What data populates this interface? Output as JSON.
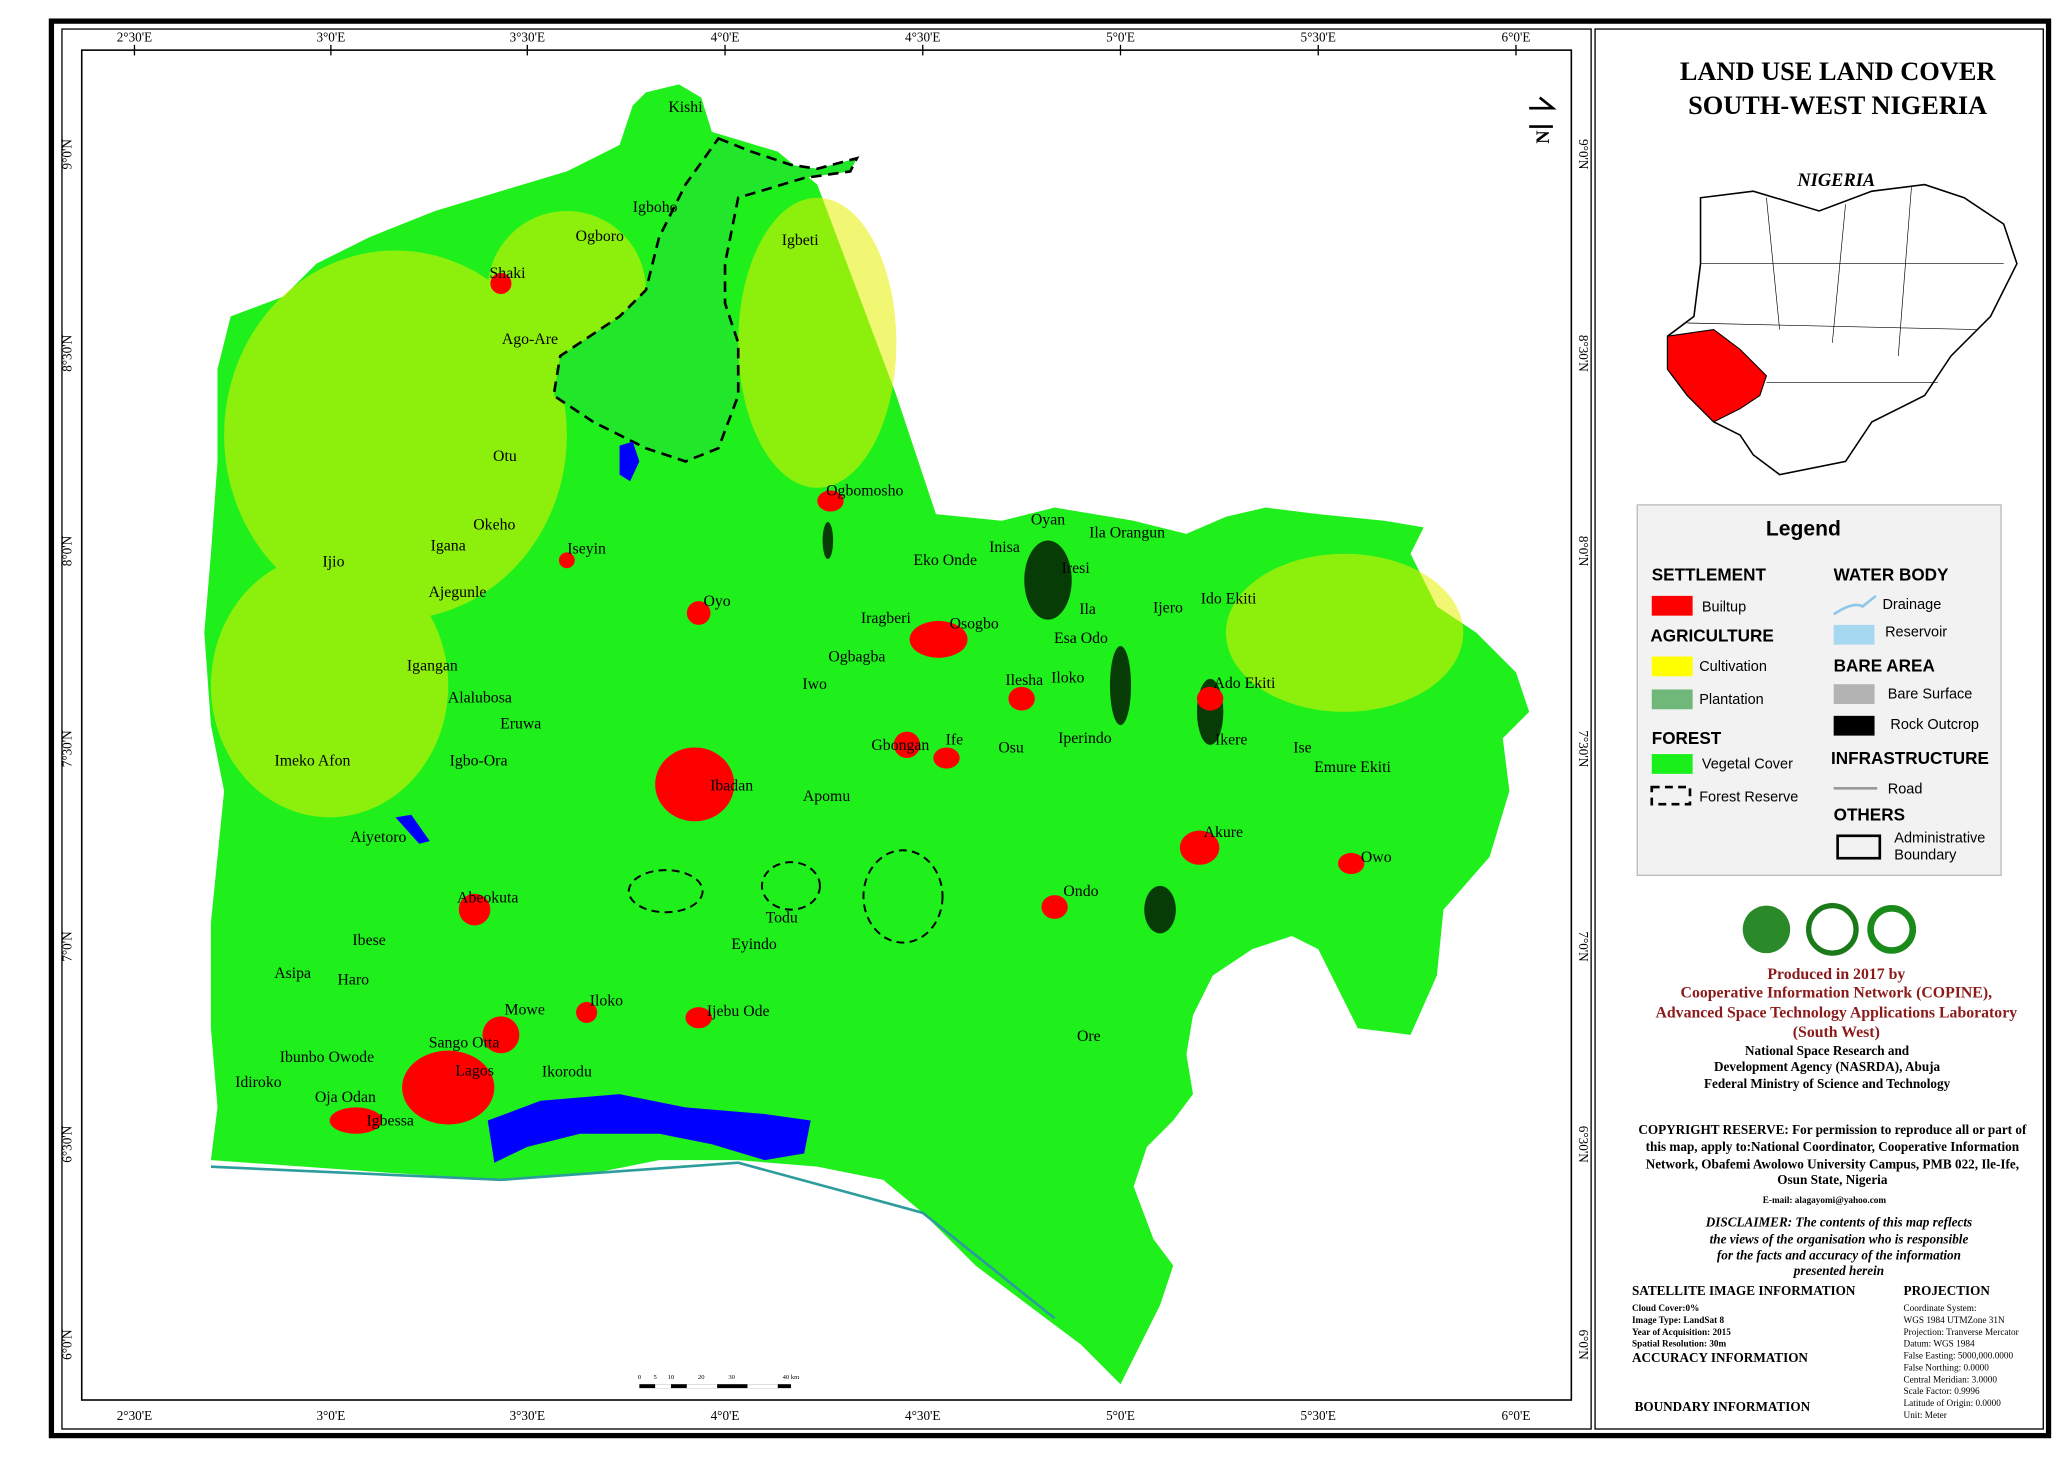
{
  "header": {
    "title_line1": "LAND USE LAND COVER",
    "title_line2": "SOUTH-WEST NIGERIA"
  },
  "map": {
    "longitude_labels": [
      "2°30'E",
      "3°0'E",
      "3°30'E",
      "4°0'E",
      "4°30'E",
      "5°0'E",
      "5°30'E",
      "6°0'E"
    ],
    "latitude_labels": [
      "9°0'N",
      "8°30'N",
      "8°0'N",
      "7°30'N",
      "7°0'N",
      "6°30'N",
      "6°0'N"
    ],
    "north_arrow": "N",
    "scale_bar": [
      "0",
      "5",
      "10",
      "20",
      "30",
      "40 km"
    ],
    "places": [
      "Kishi",
      "Igboho",
      "Ogboro",
      "Igbeti",
      "Shaki",
      "Ago-Are",
      "Otu",
      "Ogbomosho",
      "Okeho",
      "Igana",
      "Iseyin",
      "Ijio",
      "Ajegunle",
      "Oyo",
      "Igangan",
      "Alalubosa",
      "Eruwa",
      "Imeko Afon",
      "Igbo-Ora",
      "Ibadan",
      "Aiyetoro",
      "Abeokuta",
      "Ibese",
      "Asipa",
      "Haro",
      "Mowe",
      "Iloko",
      "Ijebu Ode",
      "Todu",
      "Eyindo",
      "Sango Otta",
      "Ibunbo Owode",
      "Lagos",
      "Ikorodu",
      "Idiroko",
      "Oja Odan",
      "Igbessa",
      "Eko Onde",
      "Oyan",
      "Ila Orangun",
      "Inisa",
      "Iresi",
      "Iragberi",
      "Osogbo",
      "Ogbagba",
      "Iwo",
      "Ila",
      "Esa Odo",
      "Ilesha",
      "Iloko",
      "Ijero",
      "Ido Ekiti",
      "Ado Ekiti",
      "Ikere",
      "Ise",
      "Emure Ekiti",
      "Gbongan",
      "Ife",
      "Osu",
      "Iperindo",
      "Apomu",
      "Akure",
      "Owo",
      "Ondo",
      "Ore"
    ]
  },
  "inset": {
    "label": "NIGERIA"
  },
  "legend": {
    "title": "Legend",
    "groups": [
      {
        "heading": "SETTLEMENT",
        "items": [
          {
            "label": "Builtup",
            "color": "#ff0000"
          }
        ]
      },
      {
        "heading": "AGRICULTURE",
        "items": [
          {
            "label": "Cultivation",
            "color": "#ffff00"
          },
          {
            "label": "Plantation",
            "color": "#6fb87a"
          }
        ]
      },
      {
        "heading": "FOREST",
        "items": [
          {
            "label": "Vegetal Cover",
            "color": "#19f019"
          },
          {
            "label": "Forest Reserve",
            "color": "#000000"
          }
        ]
      },
      {
        "heading": "WATER BODY",
        "items": [
          {
            "label": "Drainage",
            "color": "#8fc7ea"
          },
          {
            "label": "Reservoir",
            "color": "#a6d8f2"
          }
        ]
      },
      {
        "heading": "BARE AREA",
        "items": [
          {
            "label": "Bare Surface",
            "color": "#b3b3b3"
          },
          {
            "label": "Rock Outcrop",
            "color": "#000000"
          }
        ]
      },
      {
        "heading": "INFRASTRUCTURE",
        "items": [
          {
            "label": "Road",
            "color": "#999999"
          }
        ]
      },
      {
        "heading": "OTHERS",
        "items": [
          {
            "label": [
              "Administrative",
              "Boundary"
            ],
            "color": "#000000"
          }
        ]
      }
    ]
  },
  "credits": {
    "produced": [
      "Produced in 2017 by",
      "Cooperative Information Network (COPINE),",
      "Advanced Space Technology Applications Laboratory",
      "(South West)"
    ],
    "agency": [
      "National Space Research and",
      "Development Agency (NASRDA), Abuja",
      "Federal Ministry of Science and Technology"
    ],
    "copyright": [
      "COPYRIGHT RESERVE: For permission to reproduce all or part of",
      "this map, apply to:National Coordinator, Cooperative Information",
      "Network, Obafemi Awolowo University Campus, PMB 022, Ile-Ife,",
      "Osun State, Nigeria"
    ],
    "email": "E-mail: alagayomi@yahoo.com",
    "disclaimer": [
      "DISCLAIMER: The contents of this map reflects",
      "the views of the organisation who is responsible",
      "for the facts and accuracy of the information",
      "presented herein"
    ]
  },
  "info": {
    "satellite_title": "SATELLITE IMAGE INFORMATION",
    "satellite": [
      "Cloud Cover:0%",
      "Image Type: LandSat 8",
      "Year of Acquisition: 2015",
      "Spatial Resolution: 30m"
    ],
    "accuracy_title": "ACCURACY INFORMATION",
    "boundary_title": "BOUNDARY INFORMATION",
    "projection_title": "PROJECTION",
    "projection": [
      "Coordinate System:",
      "WGS 1984 UTMZone 31N",
      "Projection: Tranverse Mercator",
      "Datum: WGS 1984",
      "False Easting: 5000,000.0000",
      "False Northing: 0.0000",
      "Central Meridian: 3.0000",
      "Scale Factor: 0.9996",
      "Latitude of Origin: 0.0000",
      "Unit: Meter"
    ]
  }
}
